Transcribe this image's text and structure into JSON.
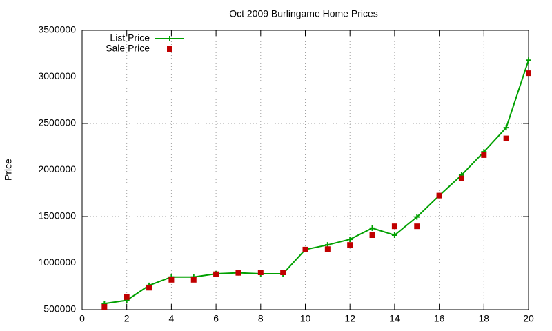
{
  "chart_data": {
    "type": "line",
    "title": "Oct 2009 Burlingame Home Prices",
    "y_label": "Price",
    "x": [
      1,
      2,
      3,
      4,
      5,
      6,
      7,
      8,
      9,
      10,
      11,
      12,
      13,
      14,
      15,
      16,
      17,
      18,
      19,
      20
    ],
    "series": [
      {
        "name": "List Price",
        "color": "#00a000",
        "marker": "plus",
        "line": true,
        "values": [
          565000,
          600000,
          760000,
          850000,
          850000,
          885000,
          895000,
          885000,
          885000,
          1145000,
          1195000,
          1255000,
          1375000,
          1300000,
          1495000,
          1725000,
          1945000,
          2195000,
          2455000,
          3180000
        ]
      },
      {
        "name": "Sale Price",
        "color": "#c00000",
        "marker": "square",
        "line": false,
        "values": [
          530000,
          635000,
          735000,
          820000,
          820000,
          880000,
          895000,
          900000,
          900000,
          1145000,
          1150000,
          1195000,
          1300000,
          1395000,
          1395000,
          1725000,
          1910000,
          2160000,
          2340000,
          3040000
        ]
      }
    ],
    "xlim": [
      0,
      20
    ],
    "xticks": [
      0,
      2,
      4,
      6,
      8,
      10,
      12,
      14,
      16,
      18,
      20
    ],
    "ylim": [
      500000,
      3500000
    ],
    "yticks": [
      500000,
      1000000,
      1500000,
      2000000,
      2500000,
      3000000,
      3500000
    ],
    "grid": true,
    "legend": "top-left"
  }
}
